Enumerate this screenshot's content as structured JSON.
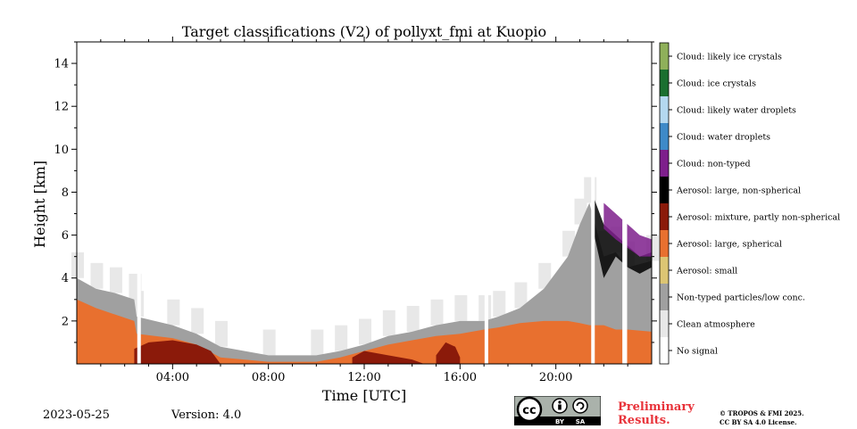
{
  "chart_data": {
    "type": "heatmap",
    "title": "Target classifications (V2) of pollyxt_fmi at Kuopio",
    "xlabel": "Time [UTC]",
    "ylabel": "Height [km]",
    "xlim_hours": [
      0,
      24
    ],
    "ylim_km": [
      0,
      15
    ],
    "x_ticks": [
      {
        "value": 4,
        "label": "04:00"
      },
      {
        "value": 8,
        "label": "08:00"
      },
      {
        "value": 12,
        "label": "12:00"
      },
      {
        "value": 16,
        "label": "16:00"
      },
      {
        "value": 20,
        "label": "20:00"
      }
    ],
    "y_ticks": [
      {
        "value": 2,
        "label": "2"
      },
      {
        "value": 4,
        "label": "4"
      },
      {
        "value": 6,
        "label": "6"
      },
      {
        "value": 8,
        "label": "8"
      },
      {
        "value": 10,
        "label": "10"
      },
      {
        "value": 12,
        "label": "12"
      },
      {
        "value": 14,
        "label": "14"
      }
    ],
    "classes": [
      {
        "id": 0,
        "label": "No signal",
        "color": "#ffffff"
      },
      {
        "id": 1,
        "label": "Clean atmosphere",
        "color": "#e8e8e8"
      },
      {
        "id": 2,
        "label": "Non-typed particles/low conc.",
        "color": "#a0a0a0"
      },
      {
        "id": 3,
        "label": "Aerosol: small",
        "color": "#dcc573"
      },
      {
        "id": 4,
        "label": "Aerosol: large, spherical",
        "color": "#e8702f"
      },
      {
        "id": 5,
        "label": "Aerosol: mixture, partly non-spherical",
        "color": "#8b1a0a"
      },
      {
        "id": 6,
        "label": "Aerosol: large, non-spherical",
        "color": "#000000"
      },
      {
        "id": 7,
        "label": "Cloud: non-typed",
        "color": "#7e1f8c"
      },
      {
        "id": 8,
        "label": "Cloud: water droplets",
        "color": "#3e8ac8"
      },
      {
        "id": 9,
        "label": "Cloud: likely water droplets",
        "color": "#b4d8f0"
      },
      {
        "id": 10,
        "label": "Cloud: ice crystals",
        "color": "#1a6f30"
      },
      {
        "id": 11,
        "label": "Cloud: likely ice crystals",
        "color": "#8fb05a"
      }
    ],
    "regions": [
      {
        "class": 2,
        "hours": [
          0.0,
          0.8,
          1.6,
          2.4,
          2.5,
          4.0,
          5.0,
          6.0,
          8.0,
          10.0,
          11.0,
          12.0,
          13.0,
          14.0,
          15.0,
          16.0,
          17.0,
          17.6,
          18.5,
          19.5,
          20.5,
          21.0,
          21.4,
          22.0,
          22.5,
          23.0,
          24.0
        ],
        "top_km": [
          4.0,
          3.5,
          3.3,
          3.0,
          2.2,
          1.8,
          1.4,
          0.8,
          0.4,
          0.4,
          0.6,
          0.9,
          1.3,
          1.5,
          1.8,
          2.0,
          2.0,
          2.2,
          2.6,
          3.5,
          5.0,
          6.5,
          7.5,
          5.0,
          5.2,
          4.5,
          4.8
        ]
      },
      {
        "class": 4,
        "hours": [
          0.0,
          0.8,
          1.6,
          2.4,
          2.5,
          4.0,
          5.0,
          6.0,
          8.0,
          10.0,
          11.0,
          12.0,
          13.0,
          14.0,
          15.0,
          16.0,
          17.0,
          17.6,
          18.5,
          19.5,
          20.5,
          21.0,
          21.4,
          22.0,
          22.5,
          23.0,
          24.0
        ],
        "top_km": [
          3.0,
          2.6,
          2.3,
          2.0,
          1.4,
          1.2,
          0.9,
          0.3,
          0.1,
          0.1,
          0.3,
          0.6,
          0.9,
          1.1,
          1.3,
          1.4,
          1.6,
          1.7,
          1.9,
          2.0,
          2.0,
          1.9,
          1.8,
          1.8,
          1.6,
          1.6,
          1.5
        ]
      },
      {
        "class": 5,
        "hours": [
          2.4,
          3.0,
          4.0,
          5.0,
          5.6,
          6.0
        ],
        "top_km": [
          0.7,
          1.0,
          1.1,
          0.9,
          0.6,
          0.0
        ]
      },
      {
        "class": 5,
        "hours": [
          11.5,
          12.0,
          13.0,
          14.0,
          14.5
        ],
        "top_km": [
          0.3,
          0.6,
          0.4,
          0.2,
          0.0
        ]
      },
      {
        "class": 5,
        "hours": [
          15.0,
          15.4,
          15.8,
          16.0
        ],
        "top_km": [
          0.4,
          1.0,
          0.8,
          0.3
        ]
      }
    ],
    "cloud_layers": [
      {
        "class": 6,
        "hours": [
          21.5,
          22.0,
          22.5,
          23.0,
          23.5,
          24.0
        ],
        "base_km": [
          6.5,
          4.0,
          5.0,
          4.5,
          4.2,
          4.5
        ],
        "top_km": [
          8.0,
          6.5,
          6.0,
          5.5,
          5.0,
          5.2
        ]
      },
      {
        "class": 7,
        "hours": [
          22.0,
          22.5,
          23.0,
          23.5,
          24.0
        ],
        "base_km": [
          6.3,
          5.8,
          5.4,
          5.0,
          5.0
        ],
        "top_km": [
          7.5,
          7.0,
          6.5,
          6.0,
          5.8
        ]
      }
    ],
    "data_gaps_hours": [
      2.6,
      17.1,
      21.55,
      22.85,
      22.9
    ],
    "footer": {
      "date": "2023-05-25",
      "version": "Version: 4.0",
      "preliminary_line1": "Preliminary",
      "preliminary_line2": "Results.",
      "copyright_line1": "© TROPOS & FMI 2025.",
      "copyright_line2": "CC BY SA 4.0 License.",
      "license_badge": [
        "cc",
        "BY",
        "SA"
      ]
    }
  }
}
